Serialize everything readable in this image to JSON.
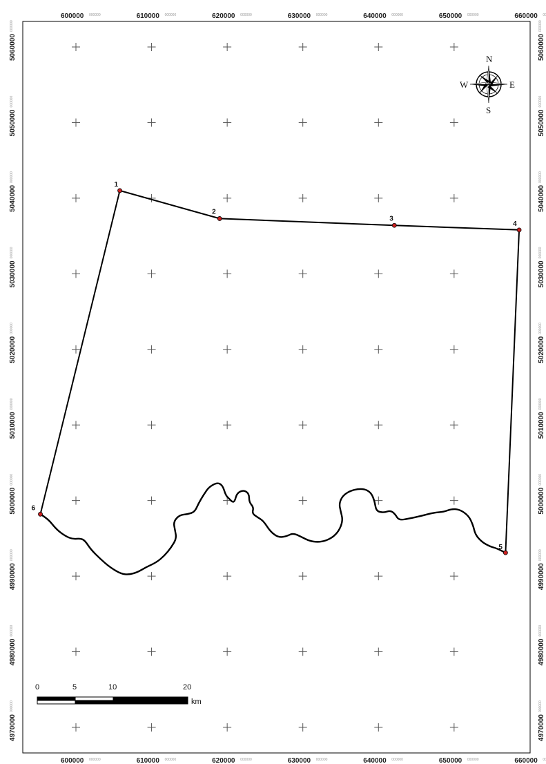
{
  "map": {
    "x_ticks": [
      {
        "value": 600000,
        "main": "600000",
        "frac": "000000"
      },
      {
        "value": 610000,
        "main": "610000",
        "frac": "000000"
      },
      {
        "value": 620000,
        "main": "620000",
        "frac": "000000"
      },
      {
        "value": 630000,
        "main": "630000",
        "frac": "000000"
      },
      {
        "value": 640000,
        "main": "640000",
        "frac": "000000"
      },
      {
        "value": 650000,
        "main": "650000",
        "frac": "000000"
      },
      {
        "value": 660000,
        "main": "660000",
        "frac": "000000"
      }
    ],
    "y_ticks": [
      {
        "value": 5060000,
        "main": "5060000",
        "frac": "000000"
      },
      {
        "value": 5050000,
        "main": "5050000",
        "frac": "000000"
      },
      {
        "value": 5040000,
        "main": "5040000",
        "frac": "000000"
      },
      {
        "value": 5030000,
        "main": "5030000",
        "frac": "000000"
      },
      {
        "value": 5020000,
        "main": "5020000",
        "frac": "000000"
      },
      {
        "value": 5010000,
        "main": "5010000",
        "frac": "000000"
      },
      {
        "value": 5000000,
        "main": "5000000",
        "frac": "000000"
      },
      {
        "value": 4990000,
        "main": "4990000",
        "frac": "000000"
      },
      {
        "value": 4980000,
        "main": "4980000",
        "frac": "000000"
      },
      {
        "value": 4970000,
        "main": "4970000",
        "frac": "000000"
      }
    ],
    "points": [
      {
        "label": "1",
        "x": 605800,
        "y": 5041000
      },
      {
        "label": "2",
        "x": 619000,
        "y": 5037300
      },
      {
        "label": "3",
        "x": 642100,
        "y": 5036400
      },
      {
        "label": "4",
        "x": 658600,
        "y": 5035800
      },
      {
        "label": "5",
        "x": 656800,
        "y": 4993100
      },
      {
        "label": "6",
        "x": 595300,
        "y": 4998200
      }
    ],
    "river": [
      [
        595300,
        4998200
      ],
      [
        596300,
        4997600
      ],
      [
        597400,
        4996200
      ],
      [
        598600,
        4995300
      ],
      [
        599600,
        4994900
      ],
      [
        600600,
        4995000
      ],
      [
        601200,
        4994700
      ],
      [
        602000,
        4993500
      ],
      [
        603200,
        4992300
      ],
      [
        604600,
        4991100
      ],
      [
        606000,
        4990300
      ],
      [
        607000,
        4990200
      ],
      [
        608100,
        4990500
      ],
      [
        609300,
        4991200
      ],
      [
        610600,
        4991800
      ],
      [
        611700,
        4992700
      ],
      [
        612600,
        4993800
      ],
      [
        613300,
        4995000
      ],
      [
        613100,
        4996100
      ],
      [
        612900,
        4997200
      ],
      [
        613700,
        4998100
      ],
      [
        614800,
        4998200
      ],
      [
        615700,
        4998500
      ],
      [
        616200,
        4999600
      ],
      [
        616900,
        5000800
      ],
      [
        617600,
        5001800
      ],
      [
        618700,
        5002400
      ],
      [
        619400,
        5002000
      ],
      [
        619800,
        5000700
      ],
      [
        620300,
        5000200
      ],
      [
        620700,
        4999800
      ],
      [
        621000,
        4999900
      ],
      [
        621300,
        5001000
      ],
      [
        622200,
        5001400
      ],
      [
        622900,
        5000900
      ],
      [
        622900,
        4999800
      ],
      [
        623500,
        4999100
      ],
      [
        623300,
        4998300
      ],
      [
        624000,
        4997800
      ],
      [
        624800,
        4997300
      ],
      [
        625700,
        4995900
      ],
      [
        626800,
        4995100
      ],
      [
        627900,
        4995300
      ],
      [
        628700,
        4995700
      ],
      [
        629800,
        4995200
      ],
      [
        631000,
        4994600
      ],
      [
        632400,
        4994500
      ],
      [
        633800,
        4995000
      ],
      [
        634800,
        4996000
      ],
      [
        635300,
        4997400
      ],
      [
        635000,
        4998600
      ],
      [
        634800,
        4999600
      ],
      [
        635300,
        5000700
      ],
      [
        636500,
        5001400
      ],
      [
        638000,
        5001600
      ],
      [
        639000,
        5001100
      ],
      [
        639500,
        4999900
      ],
      [
        639700,
        4998600
      ],
      [
        640700,
        4998400
      ],
      [
        641600,
        4998700
      ],
      [
        642200,
        4998200
      ],
      [
        642700,
        4997400
      ],
      [
        644000,
        4997600
      ],
      [
        645800,
        4998000
      ],
      [
        647300,
        4998400
      ],
      [
        648600,
        4998500
      ],
      [
        649700,
        4998900
      ],
      [
        650800,
        4998800
      ],
      [
        651900,
        4998000
      ],
      [
        652500,
        4996800
      ],
      [
        652800,
        4995500
      ],
      [
        653700,
        4994500
      ],
      [
        654800,
        4993900
      ],
      [
        655600,
        4993700
      ],
      [
        656800,
        4993100
      ]
    ],
    "scale_bar": {
      "labels": [
        "0",
        "5",
        "10",
        "20"
      ],
      "unit": "km"
    },
    "compass": {
      "n": "N",
      "s": "S",
      "e": "E",
      "w": "W"
    },
    "colors": {
      "line": "#000000",
      "point": "#cc2020",
      "grid_cross": "#555555"
    }
  }
}
